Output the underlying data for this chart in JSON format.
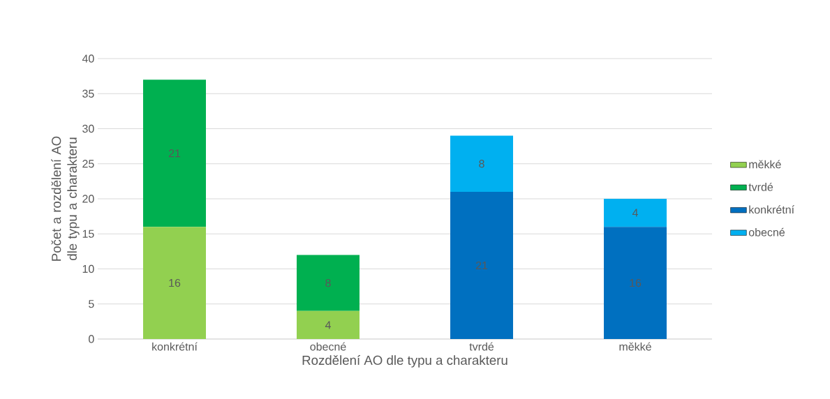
{
  "chart_data": {
    "type": "bar",
    "stacked": true,
    "xlabel": "Rozdělení AO dle typu a charakteru",
    "ylabel": "Počet a rozdělení AO dle typu a charakteru",
    "categories": [
      "konkrétní",
      "obecné",
      "tvrdé",
      "měkké"
    ],
    "series": [
      {
        "name": "měkké",
        "color": "#92d050",
        "values": [
          16,
          4,
          null,
          null
        ]
      },
      {
        "name": "tvrdé",
        "color": "#00b050",
        "values": [
          21,
          8,
          null,
          null
        ]
      },
      {
        "name": "konkrétní",
        "color": "#0070c0",
        "values": [
          null,
          null,
          21,
          16
        ]
      },
      {
        "name": "obecné",
        "color": "#00b0f0",
        "values": [
          null,
          null,
          8,
          4
        ]
      }
    ],
    "ylim": [
      0,
      40
    ],
    "yticks": [
      0,
      5,
      10,
      15,
      20,
      25,
      30,
      35,
      40
    ],
    "grid": "y",
    "legend": "right",
    "data_labels": true
  }
}
